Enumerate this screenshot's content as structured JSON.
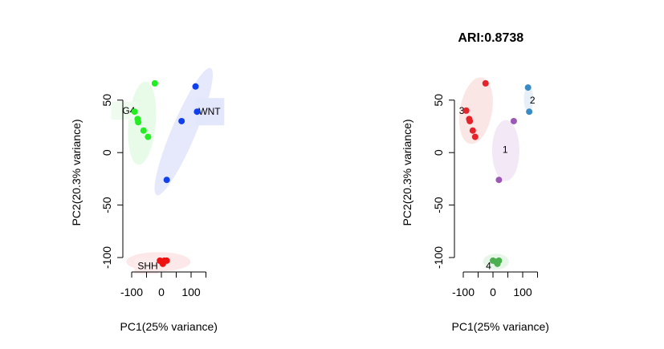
{
  "chart_data": [
    {
      "type": "scatter",
      "title": "",
      "xlabel": "PC1(25% variance)",
      "ylabel": "PC2(20.3% variance)",
      "xlim": [
        -100,
        150
      ],
      "ylim": [
        -110,
        60
      ],
      "xticks": [
        -100,
        -50,
        0,
        50,
        100
      ],
      "xtick_labels": [
        "-100",
        "",
        "0",
        "",
        "100"
      ],
      "yticks": [
        -100,
        -50,
        0,
        50
      ],
      "ytick_labels": [
        "-100",
        "-50",
        "0",
        "50"
      ],
      "groups": [
        {
          "name": "G4",
          "color": "#22ee22",
          "ellipse_fill": "#e8fbe8",
          "label_fill": "#eefbee",
          "points": [
            [
              -90,
              39
            ],
            [
              -80,
              32
            ],
            [
              -78,
              29
            ],
            [
              -60,
              21
            ],
            [
              -45,
              15
            ],
            [
              -22,
              66
            ]
          ]
        },
        {
          "name": "WNT",
          "color": "#1040ee",
          "ellipse_fill": "#e6e9fb",
          "label_fill": "#e3e7fb",
          "points": [
            [
              68,
              30
            ],
            [
              115,
              63
            ],
            [
              120,
              39
            ],
            [
              18,
              -26
            ]
          ]
        },
        {
          "name": "SHH",
          "color": "#ee1111",
          "ellipse_fill": "#fce8e8",
          "label_fill": "#fcebeb",
          "points": [
            [
              -5,
              -103
            ],
            [
              5,
              -106
            ],
            [
              18,
              -103
            ],
            [
              0,
              -104
            ],
            [
              10,
              -103
            ]
          ]
        }
      ]
    },
    {
      "type": "scatter",
      "title": "ARI:0.8738",
      "xlabel": "PC1(25% variance)",
      "ylabel": "PC2(20.3% variance)",
      "xlim": [
        -100,
        150
      ],
      "ylim": [
        -110,
        60
      ],
      "xticks": [
        -100,
        -50,
        0,
        50,
        100
      ],
      "xtick_labels": [
        "-100",
        "",
        "0",
        "",
        "100"
      ],
      "yticks": [
        -100,
        -50,
        0,
        50
      ],
      "ytick_labels": [
        "-100",
        "-50",
        "0",
        "50"
      ],
      "groups": [
        {
          "name": "1",
          "color": "#9b59b6",
          "ellipse_fill": "#f3e9f6",
          "label_fill": "#ffffff",
          "points": [
            [
              70,
              30
            ],
            [
              20,
              -26
            ]
          ]
        },
        {
          "name": "2",
          "color": "#3a8ac4",
          "ellipse_fill": "#e7f0f8",
          "label_fill": "#e7f0f8",
          "points": [
            [
              118,
              62
            ],
            [
              122,
              39
            ]
          ]
        },
        {
          "name": "3",
          "color": "#e6232a",
          "ellipse_fill": "#fbe6e6",
          "label_fill": "#fbe6e6",
          "points": [
            [
              -90,
              40
            ],
            [
              -80,
              32
            ],
            [
              -78,
              30
            ],
            [
              -68,
              21
            ],
            [
              -60,
              15
            ],
            [
              -25,
              66
            ]
          ]
        },
        {
          "name": "4",
          "color": "#4caf50",
          "ellipse_fill": "#e8f5e9",
          "label_fill": "#e8f5e9",
          "points": [
            [
              0,
              -103
            ],
            [
              10,
              -104
            ],
            [
              20,
              -103
            ],
            [
              15,
              -106
            ]
          ]
        }
      ]
    }
  ]
}
